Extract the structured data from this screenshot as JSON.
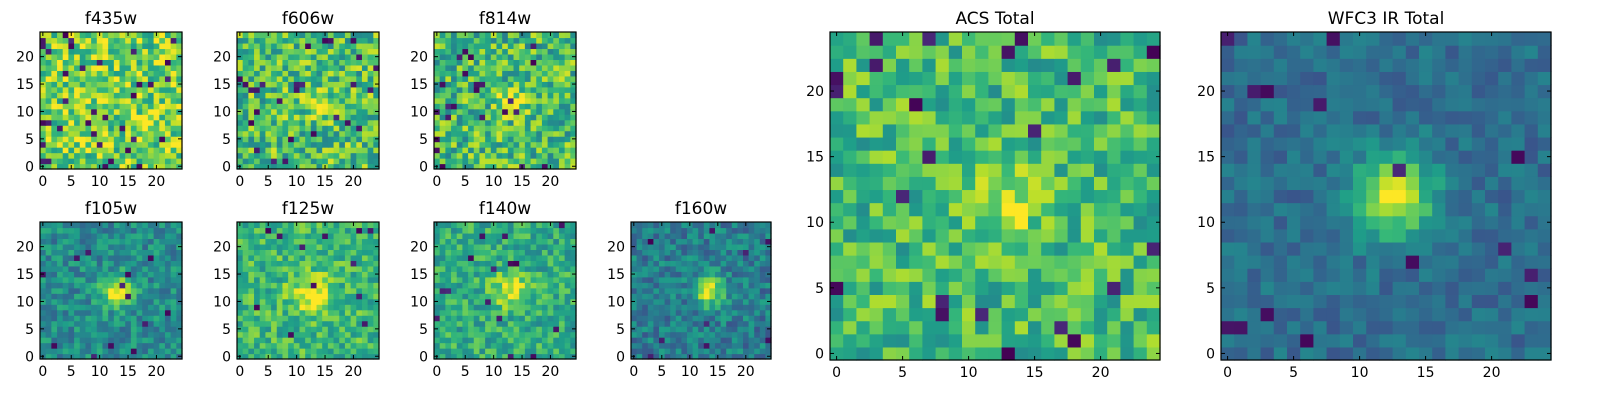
{
  "chart_data": [
    {
      "type": "heatmap",
      "title": "f435w",
      "xticks": [
        "0",
        "5",
        "10",
        "15",
        "20"
      ],
      "yticks": [
        "0",
        "5",
        "10",
        "15",
        "20"
      ],
      "grid_size": 25,
      "xlim": [
        0,
        24
      ],
      "ylim": [
        0,
        24
      ],
      "colormap": "viridis",
      "source": {
        "cx": 12.5,
        "cy": 11.5,
        "sigma": 2.0,
        "amp": 0.0,
        "noise": 0.25,
        "base": 0.78,
        "seed": 11,
        "dark_prob": 0.05
      }
    },
    {
      "type": "heatmap",
      "title": "f606w",
      "xticks": [
        "0",
        "5",
        "10",
        "15",
        "20"
      ],
      "yticks": [
        "0",
        "5",
        "10",
        "15",
        "20"
      ],
      "grid_size": 25,
      "xlim": [
        0,
        24
      ],
      "ylim": [
        0,
        24
      ],
      "colormap": "viridis",
      "source": {
        "cx": 13,
        "cy": 12,
        "sigma": 1.6,
        "amp": 0.25,
        "noise": 0.25,
        "base": 0.7,
        "seed": 23,
        "dark_prob": 0.04
      }
    },
    {
      "type": "heatmap",
      "title": "f814w",
      "xticks": [
        "0",
        "5",
        "10",
        "15",
        "20"
      ],
      "yticks": [
        "0",
        "5",
        "10",
        "15",
        "20"
      ],
      "grid_size": 25,
      "xlim": [
        0,
        24
      ],
      "ylim": [
        0,
        24
      ],
      "colormap": "viridis",
      "source": {
        "cx": 13,
        "cy": 11.5,
        "sigma": 1.6,
        "amp": 0.35,
        "noise": 0.25,
        "base": 0.68,
        "seed": 37,
        "dark_prob": 0.04
      }
    },
    {
      "type": "heatmap",
      "title": "f105w",
      "xticks": [
        "0",
        "5",
        "10",
        "15",
        "20"
      ],
      "yticks": [
        "0",
        "5",
        "10",
        "15",
        "20"
      ],
      "grid_size": 25,
      "xlim": [
        0,
        24
      ],
      "ylim": [
        0,
        24
      ],
      "colormap": "viridis",
      "source": {
        "cx": 13,
        "cy": 12,
        "sigma": 2.0,
        "amp": 0.5,
        "noise": 0.16,
        "base": 0.48,
        "seed": 41,
        "dark_prob": 0.02
      }
    },
    {
      "type": "heatmap",
      "title": "f125w",
      "xticks": [
        "0",
        "5",
        "10",
        "15",
        "20"
      ],
      "yticks": [
        "0",
        "5",
        "10",
        "15",
        "20"
      ],
      "grid_size": 25,
      "xlim": [
        0,
        24
      ],
      "ylim": [
        0,
        24
      ],
      "colormap": "viridis",
      "source": {
        "cx": 12.5,
        "cy": 11.5,
        "sigma": 2.5,
        "amp": 0.35,
        "noise": 0.18,
        "base": 0.66,
        "seed": 53,
        "dark_prob": 0.02
      }
    },
    {
      "type": "heatmap",
      "title": "f140w",
      "xticks": [
        "0",
        "5",
        "10",
        "15",
        "20"
      ],
      "yticks": [
        "0",
        "5",
        "10",
        "15",
        "20"
      ],
      "grid_size": 25,
      "xlim": [
        0,
        24
      ],
      "ylim": [
        0,
        24
      ],
      "colormap": "viridis",
      "source": {
        "cx": 13,
        "cy": 12,
        "sigma": 2.2,
        "amp": 0.35,
        "noise": 0.17,
        "base": 0.62,
        "seed": 67,
        "dark_prob": 0.02
      }
    },
    {
      "type": "heatmap",
      "title": "f160w",
      "xticks": [
        "0",
        "5",
        "10",
        "15",
        "20"
      ],
      "yticks": [
        "0",
        "5",
        "10",
        "15",
        "20"
      ],
      "grid_size": 25,
      "xlim": [
        0,
        24
      ],
      "ylim": [
        0,
        24
      ],
      "colormap": "viridis",
      "source": {
        "cx": 13.5,
        "cy": 12,
        "sigma": 1.9,
        "amp": 0.55,
        "noise": 0.16,
        "base": 0.42,
        "seed": 79,
        "dark_prob": 0.02
      }
    },
    {
      "type": "heatmap",
      "title": "ACS Total",
      "xticks": [
        "0",
        "5",
        "10",
        "15",
        "20"
      ],
      "yticks": [
        "0",
        "5",
        "10",
        "15",
        "20"
      ],
      "grid_size": 25,
      "xlim": [
        0,
        24
      ],
      "ylim": [
        0,
        24
      ],
      "colormap": "viridis",
      "source": {
        "cx": 13,
        "cy": 11.5,
        "sigma": 1.7,
        "amp": 0.3,
        "noise": 0.2,
        "base": 0.68,
        "seed": 97,
        "dark_prob": 0.04
      }
    },
    {
      "type": "heatmap",
      "title": "WFC3 IR Total",
      "xticks": [
        "0",
        "5",
        "10",
        "15",
        "20"
      ],
      "yticks": [
        "0",
        "5",
        "10",
        "15",
        "20"
      ],
      "grid_size": 25,
      "xlim": [
        0,
        24
      ],
      "ylim": [
        0,
        24
      ],
      "colormap": "viridis",
      "source": {
        "cx": 12.5,
        "cy": 12,
        "sigma": 2.2,
        "amp": 0.6,
        "noise": 0.1,
        "base": 0.36,
        "seed": 113,
        "dark_prob": 0.02
      }
    }
  ]
}
